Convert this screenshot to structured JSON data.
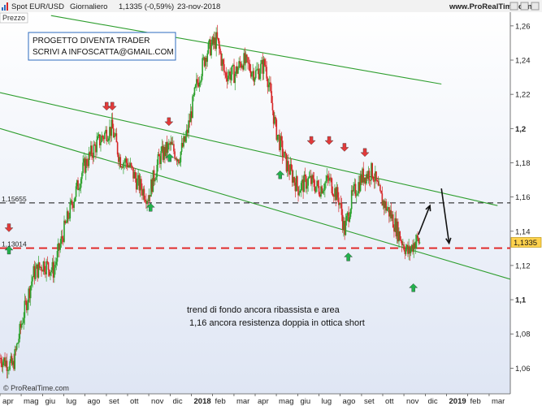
{
  "header": {
    "title": "Spot EUR/USD",
    "period": "Giornaliero",
    "quote": "1,1335 (-0,59%)",
    "date": "23-nov-2018",
    "site": "www.ProRealTime.com",
    "panel_label": "Prezzo"
  },
  "note_box": {
    "line1": "PROGETTO DIVENTA TRADER",
    "line2": "SCRIVI A INFOSCATTA@GMAIL.COM"
  },
  "annotation": {
    "line1": "trend di fondo ancora ribassista e area",
    "line2": "1,16 ancora resistenza doppia in ottica short"
  },
  "footer": {
    "copyright": "© ProRealTime.com"
  },
  "colors": {
    "up": "#2ca02c",
    "down": "#d62728",
    "trend": "#2e9e2e",
    "support": "#e02020",
    "arrow_up": "#22b14c",
    "arrow_down": "#e23a3a"
  },
  "chart_data": {
    "type": "candlestick",
    "y_range": [
      1.045,
      1.268
    ],
    "y_ticks": [
      {
        "v": 1.26,
        "label": "1,26"
      },
      {
        "v": 1.24,
        "label": "1,24"
      },
      {
        "v": 1.22,
        "label": "1,22"
      },
      {
        "v": 1.2,
        "label": "1,2"
      },
      {
        "v": 1.18,
        "label": "1,18"
      },
      {
        "v": 1.16,
        "label": "1,16"
      },
      {
        "v": 1.14,
        "label": "1,14"
      },
      {
        "v": 1.12,
        "label": "1,12"
      },
      {
        "v": 1.1,
        "label": "1,1"
      },
      {
        "v": 1.08,
        "label": "1,08"
      },
      {
        "v": 1.06,
        "label": "1,06"
      }
    ],
    "x_range": [
      2017.25,
      2019.25
    ],
    "x_ticks": [
      {
        "x": 2017.25,
        "label": "apr"
      },
      {
        "x": 2017.333,
        "label": "mag"
      },
      {
        "x": 2017.417,
        "label": "giu"
      },
      {
        "x": 2017.5,
        "label": "lug"
      },
      {
        "x": 2017.583,
        "label": "ago"
      },
      {
        "x": 2017.667,
        "label": "set"
      },
      {
        "x": 2017.75,
        "label": "ott"
      },
      {
        "x": 2017.833,
        "label": "nov"
      },
      {
        "x": 2017.917,
        "label": "dic"
      },
      {
        "x": 2018.0,
        "label": "2018",
        "bold": true
      },
      {
        "x": 2018.083,
        "label": "feb"
      },
      {
        "x": 2018.167,
        "label": "mar"
      },
      {
        "x": 2018.25,
        "label": "apr"
      },
      {
        "x": 2018.333,
        "label": "mag"
      },
      {
        "x": 2018.417,
        "label": "giu"
      },
      {
        "x": 2018.5,
        "label": "lug"
      },
      {
        "x": 2018.583,
        "label": "ago"
      },
      {
        "x": 2018.667,
        "label": "set"
      },
      {
        "x": 2018.75,
        "label": "ott"
      },
      {
        "x": 2018.833,
        "label": "nov"
      },
      {
        "x": 2018.917,
        "label": "dic"
      },
      {
        "x": 2019.0,
        "label": "2019",
        "bold": true
      },
      {
        "x": 2019.083,
        "label": "feb"
      },
      {
        "x": 2019.167,
        "label": "mar"
      }
    ],
    "last_price": {
      "v": 1.1335,
      "label": "1,1335"
    },
    "horizontal_levels": [
      {
        "v": 1.15655,
        "label": "1,15655",
        "style": "dashed-black"
      },
      {
        "v": 1.13014,
        "label": "1,13014",
        "style": "dashed-red"
      }
    ],
    "trend_lines": [
      {
        "from": [
          2017.45,
          1.266
        ],
        "to": [
          2018.98,
          1.226
        ]
      },
      {
        "from": [
          2017.25,
          1.221
        ],
        "to": [
          2019.2,
          1.155
        ]
      },
      {
        "from": [
          2017.25,
          1.2
        ],
        "to": [
          2019.25,
          1.112
        ]
      }
    ],
    "price_path": [
      [
        2017.25,
        1.066
      ],
      [
        2017.3,
        1.061
      ],
      [
        2017.34,
        1.09
      ],
      [
        2017.38,
        1.115
      ],
      [
        2017.42,
        1.121
      ],
      [
        2017.46,
        1.117
      ],
      [
        2017.5,
        1.14
      ],
      [
        2017.54,
        1.16
      ],
      [
        2017.58,
        1.178
      ],
      [
        2017.625,
        1.19
      ],
      [
        2017.667,
        1.198
      ],
      [
        2017.69,
        1.2
      ],
      [
        2017.72,
        1.182
      ],
      [
        2017.75,
        1.18
      ],
      [
        2017.79,
        1.168
      ],
      [
        2017.83,
        1.16
      ],
      [
        2017.875,
        1.183
      ],
      [
        2017.917,
        1.19
      ],
      [
        2017.95,
        1.183
      ],
      [
        2017.98,
        1.195
      ],
      [
        2018.02,
        1.225
      ],
      [
        2018.06,
        1.245
      ],
      [
        2018.1,
        1.252
      ],
      [
        2018.13,
        1.232
      ],
      [
        2018.17,
        1.232
      ],
      [
        2018.2,
        1.24
      ],
      [
        2018.25,
        1.232
      ],
      [
        2018.29,
        1.238
      ],
      [
        2018.33,
        1.2
      ],
      [
        2018.37,
        1.18
      ],
      [
        2018.42,
        1.165
      ],
      [
        2018.46,
        1.17
      ],
      [
        2018.5,
        1.165
      ],
      [
        2018.54,
        1.17
      ],
      [
        2018.58,
        1.158
      ],
      [
        2018.6,
        1.14
      ],
      [
        2018.63,
        1.16
      ],
      [
        2018.67,
        1.172
      ],
      [
        2018.71,
        1.175
      ],
      [
        2018.74,
        1.16
      ],
      [
        2018.78,
        1.15
      ],
      [
        2018.82,
        1.136
      ],
      [
        2018.85,
        1.127
      ],
      [
        2018.88,
        1.135
      ],
      [
        2018.895,
        1.1335
      ]
    ],
    "arrow_markers": [
      {
        "x": 2017.285,
        "v": 1.129,
        "dir": "up"
      },
      {
        "x": 2017.285,
        "v": 1.142,
        "dir": "down"
      },
      {
        "x": 2017.668,
        "v": 1.213,
        "dir": "down"
      },
      {
        "x": 2017.69,
        "v": 1.213,
        "dir": "down"
      },
      {
        "x": 2017.84,
        "v": 1.154,
        "dir": "up"
      },
      {
        "x": 2017.915,
        "v": 1.183,
        "dir": "up"
      },
      {
        "x": 2017.912,
        "v": 1.204,
        "dir": "down"
      },
      {
        "x": 2018.348,
        "v": 1.173,
        "dir": "up"
      },
      {
        "x": 2018.47,
        "v": 1.193,
        "dir": "down"
      },
      {
        "x": 2018.54,
        "v": 1.193,
        "dir": "down"
      },
      {
        "x": 2018.6,
        "v": 1.189,
        "dir": "down"
      },
      {
        "x": 2018.68,
        "v": 1.186,
        "dir": "down"
      },
      {
        "x": 2018.615,
        "v": 1.125,
        "dir": "up"
      },
      {
        "x": 2018.87,
        "v": 1.107,
        "dir": "up"
      }
    ],
    "projection": [
      [
        2018.89,
        1.138
      ],
      [
        2018.935,
        1.155
      ],
      [
        2018.98,
        1.165
      ],
      [
        2019.01,
        1.133
      ]
    ]
  }
}
